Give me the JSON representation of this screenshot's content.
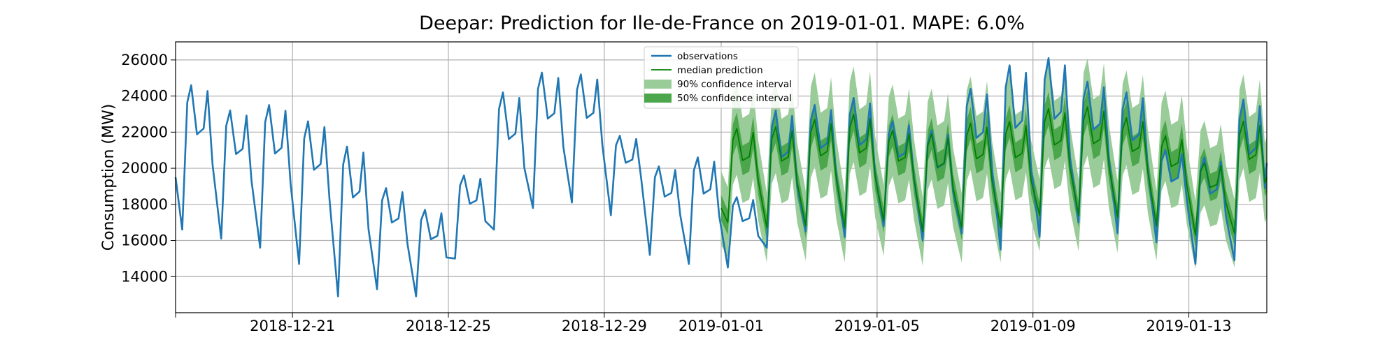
{
  "chart_data": {
    "type": "line",
    "title": "Deepar: Prediction for Ile-de-France on 2019-01-01. MAPE: 6.0%",
    "xlabel": "",
    "ylabel": "Consumption (MW)",
    "x_range": [
      "2018-12-18",
      "2019-01-15"
    ],
    "ylim": [
      12000,
      27000
    ],
    "grid": true,
    "legend_position": "top-center",
    "x_ticks": [
      "2018-12-21",
      "2018-12-25",
      "2018-12-29",
      "2019-01-01",
      "2019-01-05",
      "2019-01-09",
      "2019-01-13"
    ],
    "y_ticks": [
      14000,
      16000,
      18000,
      20000,
      22000,
      24000,
      26000
    ],
    "legend": [
      {
        "label": "observations",
        "kind": "line",
        "color": "#1f77b4"
      },
      {
        "label": "median prediction",
        "kind": "line",
        "color": "#008000"
      },
      {
        "label": "90% confidence interval",
        "kind": "band",
        "color": "#99cc99"
      },
      {
        "label": "50% confidence interval",
        "kind": "band",
        "color": "#4ca64c"
      }
    ],
    "series": [
      {
        "name": "observations",
        "color": "#1f77b4",
        "sampling": "daily minimum and maximum",
        "x": [
          "2018-12-18",
          "2018-12-19",
          "2018-12-20",
          "2018-12-21",
          "2018-12-22",
          "2018-12-23",
          "2018-12-24",
          "2018-12-25",
          "2018-12-26",
          "2018-12-27",
          "2018-12-28",
          "2018-12-29",
          "2018-12-30",
          "2018-12-31",
          "2019-01-01",
          "2019-01-02",
          "2019-01-03",
          "2019-01-04",
          "2019-01-05",
          "2019-01-06",
          "2019-01-07",
          "2019-01-08",
          "2019-01-09",
          "2019-01-10",
          "2019-01-11",
          "2019-01-12",
          "2019-01-13",
          "2019-01-14"
        ],
        "daily_min": [
          16600,
          16100,
          15600,
          14700,
          12900,
          13300,
          12900,
          15000,
          16600,
          17800,
          18100,
          17400,
          15200,
          14700,
          14500,
          15600,
          16500,
          16200,
          16800,
          16000,
          16400,
          15500,
          16200,
          17000,
          16400,
          15900,
          14700,
          14900
        ],
        "daily_max": [
          24600,
          23200,
          23500,
          22600,
          21200,
          18900,
          17700,
          19600,
          24200,
          25300,
          25200,
          21800,
          20100,
          20600,
          18400,
          23200,
          23500,
          23900,
          22600,
          22100,
          24400,
          25700,
          26100,
          24800,
          24200,
          21000,
          20600,
          23800
        ],
        "start_value": 19500,
        "end_value": 20300
      },
      {
        "name": "median prediction",
        "color": "#008000",
        "sampling": "daily minimum and maximum",
        "x": [
          "2019-01-01",
          "2019-01-02",
          "2019-01-03",
          "2019-01-04",
          "2019-01-05",
          "2019-01-06",
          "2019-01-07",
          "2019-01-08",
          "2019-01-09",
          "2019-01-10",
          "2019-01-11",
          "2019-01-12",
          "2019-01-13",
          "2019-01-14"
        ],
        "daily_min": [
          17000,
          16700,
          16800,
          16700,
          17100,
          16500,
          16700,
          16700,
          17400,
          17400,
          17300,
          16800,
          16300,
          16400
        ],
        "daily_max": [
          22200,
          22300,
          22700,
          23000,
          22100,
          21900,
          22500,
          22600,
          23300,
          23400,
          22800,
          21800,
          20300,
          22600
        ],
        "start_value": 17800,
        "end_value": 19500
      }
    ],
    "confidence_intervals": [
      {
        "label": "90% confidence interval",
        "half_width_fraction": 0.115
      },
      {
        "label": "50% confidence interval",
        "half_width_fraction": 0.04
      }
    ]
  }
}
